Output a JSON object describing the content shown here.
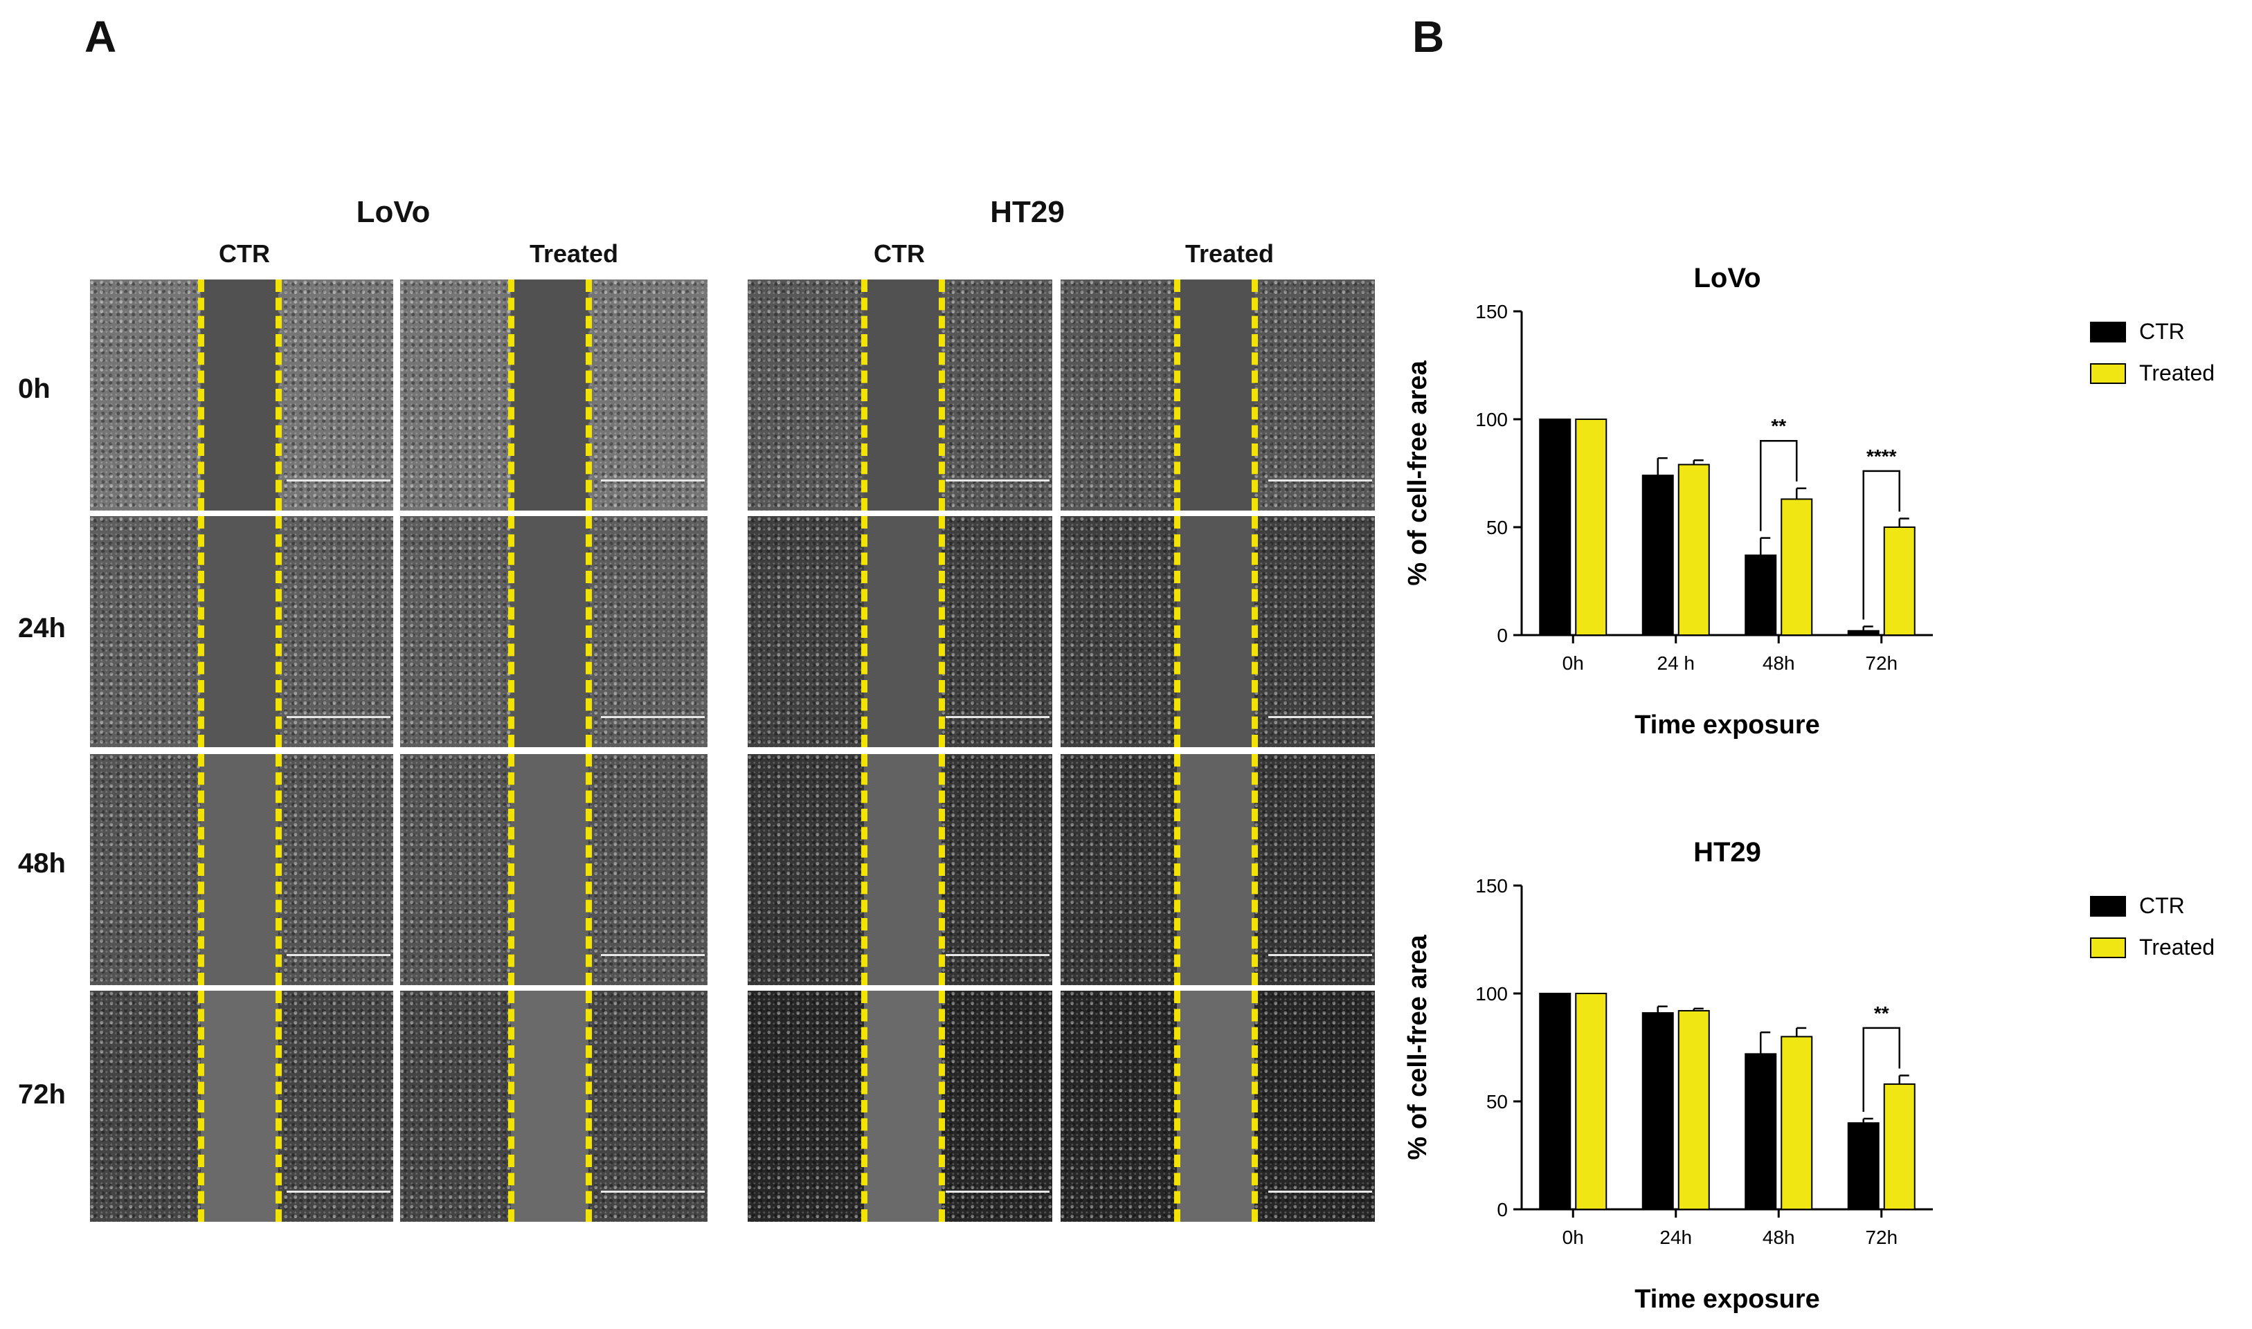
{
  "panels": {
    "a": {
      "letter": "A",
      "cell_lines": [
        {
          "name": "LoVo",
          "columns": [
            "CTR",
            "Treated"
          ]
        },
        {
          "name": "HT29",
          "columns": [
            "CTR",
            "Treated"
          ]
        }
      ],
      "rows": [
        "0h",
        "24h",
        "48h",
        "72h"
      ]
    },
    "b": {
      "letter": "B"
    }
  },
  "colors": {
    "ctr": "#000000",
    "treated": "#f0e614",
    "dashed_line": "#f2e400"
  },
  "chart_data": [
    {
      "type": "bar",
      "title": "LoVo",
      "xlabel": "Time exposure",
      "ylabel": "% of cell-free area",
      "categories": [
        "0h",
        "24 h",
        "48h",
        "72h"
      ],
      "ylim": [
        0,
        150
      ],
      "yticks": [
        "0",
        "50",
        "100",
        "150"
      ],
      "series": [
        {
          "name": "CTR",
          "values": [
            100,
            74,
            37,
            2
          ],
          "errors": [
            0,
            8,
            8,
            2
          ]
        },
        {
          "name": "Treated",
          "values": [
            100,
            79,
            63,
            50
          ],
          "errors": [
            0,
            2,
            5,
            4
          ]
        }
      ],
      "significance": [
        {
          "category_index": 2,
          "label": "**"
        },
        {
          "category_index": 3,
          "label": "****"
        }
      ],
      "legend_position": "right"
    },
    {
      "type": "bar",
      "title": "HT29",
      "xlabel": "Time exposure",
      "ylabel": "% of cell-free area",
      "categories": [
        "0h",
        "24h",
        "48h",
        "72h"
      ],
      "ylim": [
        0,
        150
      ],
      "yticks": [
        "0",
        "50",
        "100",
        "150"
      ],
      "series": [
        {
          "name": "CTR",
          "values": [
            100,
            91,
            72,
            40
          ],
          "errors": [
            0,
            3,
            10,
            2
          ]
        },
        {
          "name": "Treated",
          "values": [
            100,
            92,
            80,
            58
          ],
          "errors": [
            0,
            1,
            4,
            4
          ]
        }
      ],
      "significance": [
        {
          "category_index": 3,
          "label": "**"
        }
      ],
      "legend_position": "right"
    }
  ]
}
